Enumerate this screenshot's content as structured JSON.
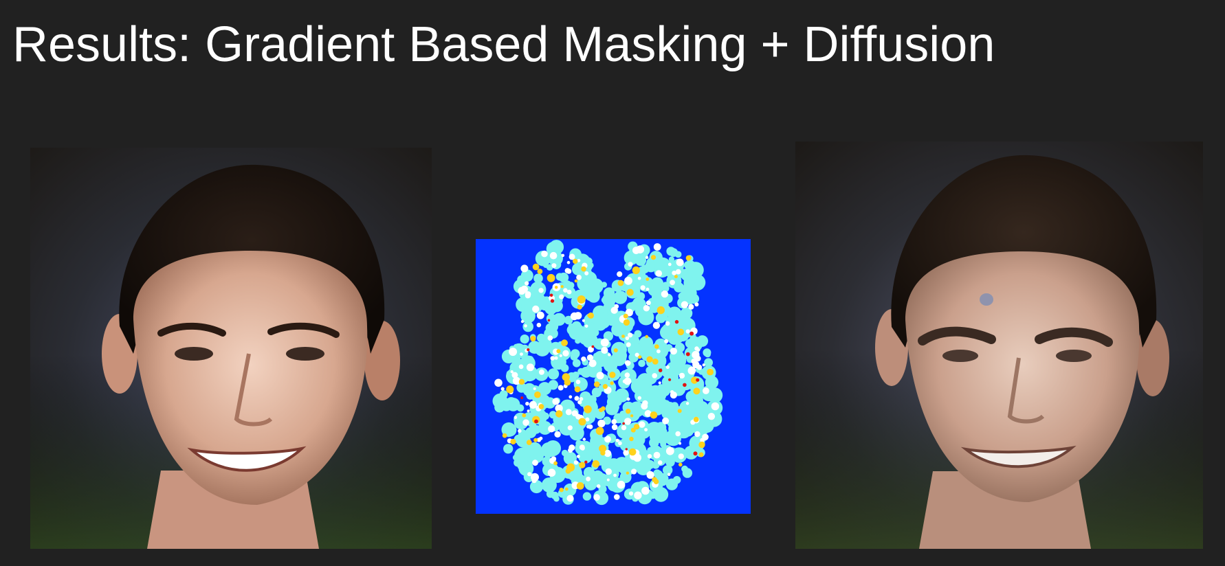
{
  "slide": {
    "title": "Results: Gradient Based Masking + Diffusion"
  },
  "images": [
    {
      "role": "original-face-photo",
      "description_icon": "face-photo-icon"
    },
    {
      "role": "gradient-saliency-mask",
      "description_icon": "heatmap-icon"
    },
    {
      "role": "diffusion-edited-face",
      "description_icon": "face-photo-icon"
    }
  ],
  "colors": {
    "background": "#212121",
    "title_text": "#ffffff",
    "mask_background": "#0433ff",
    "mask_low": "#7ff3ee",
    "mask_mid": "#ffffff",
    "mask_high": "#ffd21c",
    "mask_peak": "#e11313"
  }
}
